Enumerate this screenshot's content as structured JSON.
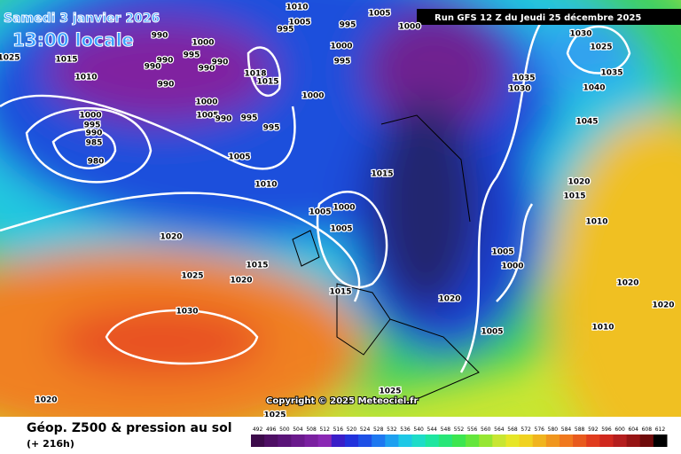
{
  "header": {
    "date": "Samedi 3 janvier 2026",
    "time": "13:00 locale",
    "run": "Run GFS 12 Z du Jeudi 25 décembre 2025"
  },
  "copyright": "Copyright © 2025 Meteociel.fr",
  "footer": {
    "title": "Géop. Z500 & pression au sol",
    "lead": "(+ 216h)"
  },
  "isobar_labels": [
    "1010",
    "1005",
    "995",
    "1005",
    "995",
    "1000",
    "990",
    "1000",
    "995",
    "990",
    "990",
    "990",
    "990",
    "1015",
    "1025",
    "1010",
    "990",
    "1018",
    "1015",
    "1000",
    "995",
    "1000",
    "1000",
    "1005",
    "990",
    "995",
    "995",
    "1000",
    "995",
    "990",
    "985",
    "980",
    "1005",
    "1010",
    "1015",
    "1005",
    "1000",
    "1005",
    "1020",
    "1015",
    "1025",
    "1020",
    "1030",
    "1015",
    "1020",
    "1005",
    "1000",
    "1005",
    "1035",
    "1030",
    "1035",
    "1030",
    "1025",
    "1040",
    "1045",
    "1020",
    "1015",
    "1010",
    "1020",
    "1020",
    "1010",
    "1025",
    "1025",
    "1020"
  ],
  "colorbar": {
    "labels": [
      492,
      496,
      500,
      504,
      508,
      512,
      516,
      520,
      524,
      528,
      532,
      536,
      540,
      544,
      548,
      552,
      556,
      560,
      564,
      568,
      572,
      576,
      580,
      584,
      588,
      592,
      596,
      600,
      604,
      608,
      612
    ]
  }
}
